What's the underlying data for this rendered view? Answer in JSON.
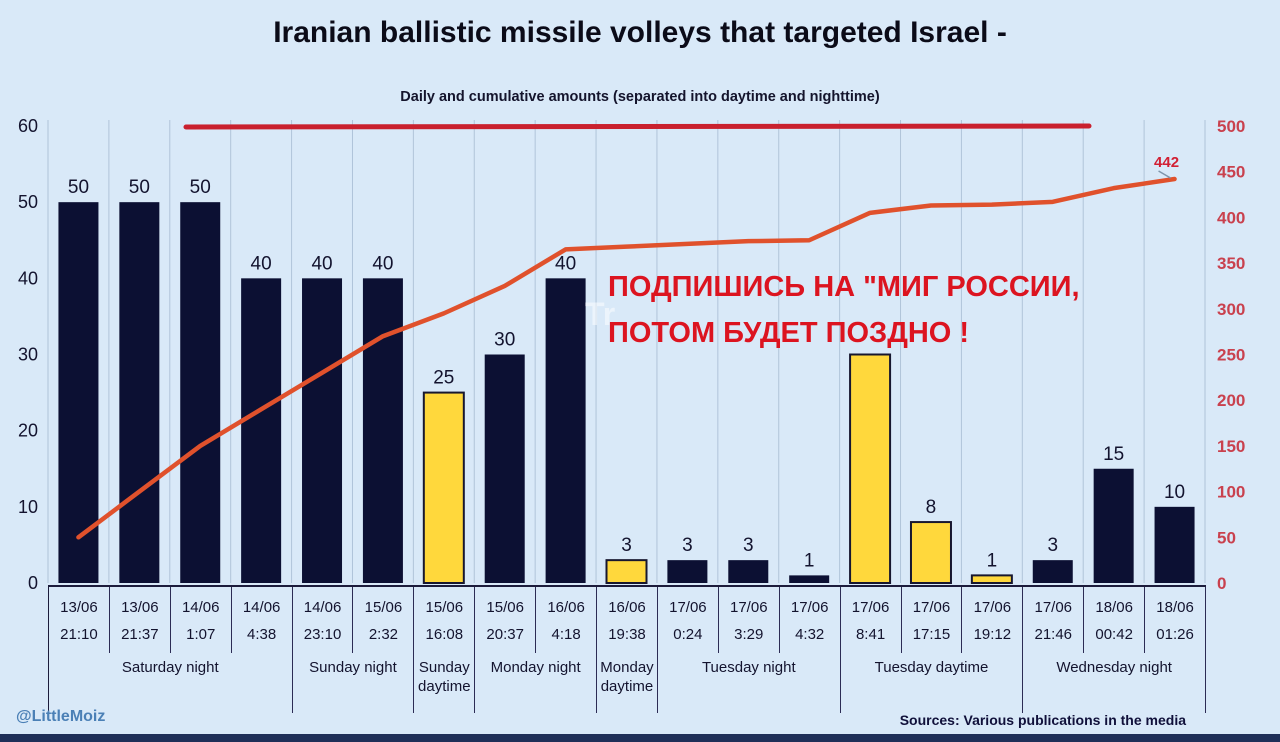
{
  "header": {
    "title": "Iranian ballistic missile volleys that targeted Israel -",
    "subtitle": "Daily and cumulative amounts (separated into daytime and nighttime)"
  },
  "overlay_note": {
    "line1": "ПОДПИШИСЬ НА \"МИГ РОССИИ,",
    "line2": "ПОТОМ БУДЕТ ПОЗДНО !",
    "faint_mark": "Tr"
  },
  "footer": {
    "handle": "@LittleMoiz",
    "sources": "Sources: Various publications in the media"
  },
  "colors": {
    "background": "#d9e9f8",
    "night_bar": "#0c1033",
    "daytime_bar": "#ffd83c",
    "daytime_bar_border": "#17172f",
    "cumulative_line": "#e0512c",
    "reference_line": "#c9202e",
    "right_axis_text": "#c9414e",
    "end_label_text": "#d21f33",
    "dark_text": "#13132e",
    "gridline": "#a9bed4",
    "note_red": "#dc1420"
  },
  "chart_data": {
    "type": "bar+line",
    "title": "Iranian ballistic missile volleys that targeted Israel -",
    "subtitle": "Daily and cumulative amounts (separated into daytime and nighttime)",
    "left_axis": {
      "ticks": [
        0,
        10,
        20,
        30,
        40,
        50,
        60
      ],
      "max": 60
    },
    "right_axis": {
      "ticks": [
        0,
        50,
        100,
        150,
        200,
        250,
        300,
        350,
        400,
        450,
        500
      ],
      "max": 500
    },
    "bars": [
      {
        "date": "13/06",
        "time": "21:10",
        "value": 50,
        "period": "night"
      },
      {
        "date": "13/06",
        "time": "21:37",
        "value": 50,
        "period": "night"
      },
      {
        "date": "14/06",
        "time": "1:07",
        "value": 50,
        "period": "night"
      },
      {
        "date": "14/06",
        "time": "4:38",
        "value": 40,
        "period": "night"
      },
      {
        "date": "14/06",
        "time": "23:10",
        "value": 40,
        "period": "night"
      },
      {
        "date": "15/06",
        "time": "2:32",
        "value": 40,
        "period": "night"
      },
      {
        "date": "15/06",
        "time": "16:08",
        "value": 25,
        "period": "daytime"
      },
      {
        "date": "15/06",
        "time": "20:37",
        "value": 30,
        "period": "night"
      },
      {
        "date": "16/06",
        "time": "4:18",
        "value": 40,
        "period": "night"
      },
      {
        "date": "16/06",
        "time": "19:38",
        "value": 3,
        "period": "daytime"
      },
      {
        "date": "17/06",
        "time": "0:24",
        "value": 3,
        "period": "night"
      },
      {
        "date": "17/06",
        "time": "3:29",
        "value": 3,
        "period": "night"
      },
      {
        "date": "17/06",
        "time": "4:32",
        "value": 1,
        "period": "night"
      },
      {
        "date": "17/06",
        "time": "8:41",
        "value": 30,
        "period": "daytime",
        "label_visible": false
      },
      {
        "date": "17/06",
        "time": "17:15",
        "value": 8,
        "period": "daytime"
      },
      {
        "date": "17/06",
        "time": "19:12",
        "value": 1,
        "period": "daytime"
      },
      {
        "date": "17/06",
        "time": "21:46",
        "value": 3,
        "period": "night"
      },
      {
        "date": "18/06",
        "time": "00:42",
        "value": 15,
        "period": "night"
      },
      {
        "date": "18/06",
        "time": "01:26",
        "value": 10,
        "period": "night"
      }
    ],
    "groups": [
      {
        "label": "Saturday night",
        "span": 4
      },
      {
        "label": "Sunday night",
        "span": 2
      },
      {
        "label": "Sunday daytime",
        "span": 1
      },
      {
        "label": "Monday night",
        "span": 2
      },
      {
        "label": "Monday daytime",
        "span": 1
      },
      {
        "label": "Tuesday night",
        "span": 3
      },
      {
        "label": "Tuesday daytime",
        "span": 3
      },
      {
        "label": "Wednesday night",
        "span": 3
      }
    ],
    "cumulative_line": {
      "name": "cumulative total",
      "values": [
        50,
        100,
        150,
        190,
        230,
        270,
        295,
        325,
        365,
        368,
        371,
        374,
        375,
        405,
        413,
        414,
        417,
        432,
        442
      ],
      "end_label": "442"
    },
    "reference_line": {
      "value": 500
    },
    "legend": "none",
    "grid": "vertical"
  }
}
